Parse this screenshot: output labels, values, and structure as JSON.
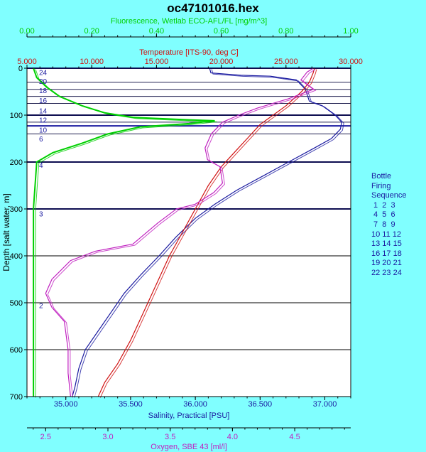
{
  "chart_data": {
    "type": "line",
    "title": "oc47101016.hex",
    "y_axis": {
      "label": "Depth [salt water, m]",
      "range": [
        0,
        700
      ],
      "ticks": [
        0,
        100,
        200,
        300,
        400,
        500,
        600,
        700
      ],
      "inverted": true
    },
    "x_axes": [
      {
        "id": "fluorescence",
        "label": "Fluorescence, Wetlab ECO-AFL/FL [mg/m^3]",
        "position": "top-outer",
        "color": "#00d000",
        "range": [
          0,
          1
        ],
        "ticks": [
          "0.00",
          "0.20",
          "0.40",
          "0.60",
          "0.80",
          "1.00"
        ]
      },
      {
        "id": "temperature",
        "label": "Temperature [ITS-90, deg C]",
        "position": "top-inner",
        "color": "#d01010",
        "range": [
          5,
          30
        ],
        "ticks": [
          "5.000",
          "10.000",
          "15.000",
          "20.000",
          "25.000",
          "30.000"
        ]
      },
      {
        "id": "salinity",
        "label": "Salinity, Practical [PSU]",
        "position": "bottom-inner",
        "color": "#1a1aa0",
        "range": [
          34.7,
          37.2
        ],
        "ticks": [
          "35.000",
          "35.500",
          "36.000",
          "36.500",
          "37.000"
        ]
      },
      {
        "id": "oxygen",
        "label": "Oxygen, SBE 43 [ml/l]",
        "position": "bottom-outer",
        "color": "#c020c0",
        "range": [
          2.35,
          4.95
        ],
        "ticks": [
          "2.5",
          "3.0",
          "3.5",
          "4.0",
          "4.5"
        ]
      }
    ],
    "grid_lines_depth": [
      0,
      30,
      45,
      60,
      75,
      100,
      115,
      123,
      140,
      200,
      300,
      500,
      700
    ],
    "bold_grid_depth": [
      0,
      100,
      123,
      200,
      300
    ],
    "series": [
      {
        "axis": "salinity",
        "color": "#1a1aa0",
        "points": [
          [
            36.11,
            0
          ],
          [
            36.12,
            10
          ],
          [
            36.35,
            15
          ],
          [
            36.58,
            17
          ],
          [
            36.78,
            25
          ],
          [
            36.85,
            45
          ],
          [
            36.88,
            70
          ],
          [
            36.98,
            80
          ],
          [
            37.08,
            100
          ],
          [
            37.13,
            115
          ],
          [
            37.12,
            130
          ],
          [
            37.05,
            150
          ],
          [
            36.92,
            170
          ],
          [
            36.72,
            200
          ],
          [
            36.52,
            230
          ],
          [
            36.32,
            260
          ],
          [
            36.15,
            290
          ],
          [
            36.0,
            320
          ],
          [
            35.85,
            360
          ],
          [
            35.72,
            400
          ],
          [
            35.58,
            440
          ],
          [
            35.45,
            480
          ],
          [
            35.35,
            520
          ],
          [
            35.25,
            560
          ],
          [
            35.15,
            600
          ],
          [
            35.1,
            640
          ],
          [
            35.07,
            680
          ],
          [
            35.05,
            700
          ]
        ]
      },
      {
        "axis": "temperature",
        "color": "#d01010",
        "points": [
          [
            27.2,
            0
          ],
          [
            27.1,
            10
          ],
          [
            26.8,
            30
          ],
          [
            26.2,
            50
          ],
          [
            25.0,
            80
          ],
          [
            24.0,
            100
          ],
          [
            23.0,
            120
          ],
          [
            22.0,
            150
          ],
          [
            21.0,
            180
          ],
          [
            20.0,
            210
          ],
          [
            19.0,
            250
          ],
          [
            18.0,
            300
          ],
          [
            17.0,
            350
          ],
          [
            16.0,
            400
          ],
          [
            15.0,
            460
          ],
          [
            14.0,
            520
          ],
          [
            13.0,
            580
          ],
          [
            12.0,
            630
          ],
          [
            11.0,
            670
          ],
          [
            10.5,
            700
          ]
        ]
      },
      {
        "axis": "oxygen",
        "color": "#c020c0",
        "points": [
          [
            4.65,
            0
          ],
          [
            4.6,
            8
          ],
          [
            4.55,
            25
          ],
          [
            4.6,
            35
          ],
          [
            4.65,
            45
          ],
          [
            4.45,
            65
          ],
          [
            4.2,
            85
          ],
          [
            4.05,
            100
          ],
          [
            3.92,
            115
          ],
          [
            3.83,
            140
          ],
          [
            3.78,
            170
          ],
          [
            3.8,
            195
          ],
          [
            3.9,
            210
          ],
          [
            3.92,
            245
          ],
          [
            3.85,
            265
          ],
          [
            3.7,
            290
          ],
          [
            3.55,
            300
          ],
          [
            3.4,
            330
          ],
          [
            3.2,
            375
          ],
          [
            2.9,
            390
          ],
          [
            2.7,
            410
          ],
          [
            2.55,
            450
          ],
          [
            2.5,
            480
          ],
          [
            2.55,
            510
          ],
          [
            2.65,
            540
          ],
          [
            2.68,
            600
          ],
          [
            2.68,
            650
          ],
          [
            2.7,
            700
          ]
        ]
      },
      {
        "axis": "fluorescence",
        "color": "#00d000",
        "points": [
          [
            0.02,
            0
          ],
          [
            0.03,
            20
          ],
          [
            0.06,
            40
          ],
          [
            0.1,
            60
          ],
          [
            0.17,
            80
          ],
          [
            0.24,
            95
          ],
          [
            0.33,
            105
          ],
          [
            0.5,
            110
          ],
          [
            0.58,
            112
          ],
          [
            0.5,
            118
          ],
          [
            0.35,
            125
          ],
          [
            0.25,
            140
          ],
          [
            0.17,
            160
          ],
          [
            0.08,
            180
          ],
          [
            0.03,
            200
          ],
          [
            0.02,
            300
          ],
          [
            0.02,
            500
          ],
          [
            0.02,
            700
          ]
        ]
      }
    ],
    "bottle_markers": [
      {
        "label": "24",
        "depth": 8
      },
      {
        "label": "20",
        "depth": 27
      },
      {
        "label": "18",
        "depth": 47
      },
      {
        "label": "16",
        "depth": 68
      },
      {
        "label": "14",
        "depth": 90
      },
      {
        "label": "12",
        "depth": 110
      },
      {
        "label": "10",
        "depth": 131
      },
      {
        "label": "6",
        "depth": 150
      },
      {
        "label": "4",
        "depth": 206
      },
      {
        "label": "3",
        "depth": 310
      },
      {
        "label": "2",
        "depth": 505
      }
    ],
    "legend": {
      "title_lines": [
        "Bottle",
        "Firing",
        "Sequence"
      ],
      "rows": [
        " 1  2  3",
        " 4  5  6",
        " 7  8  9",
        "10 11 12",
        "13 14 15",
        "16 17 18",
        "19 20 21",
        "22 23 24"
      ],
      "placement": "right"
    }
  }
}
